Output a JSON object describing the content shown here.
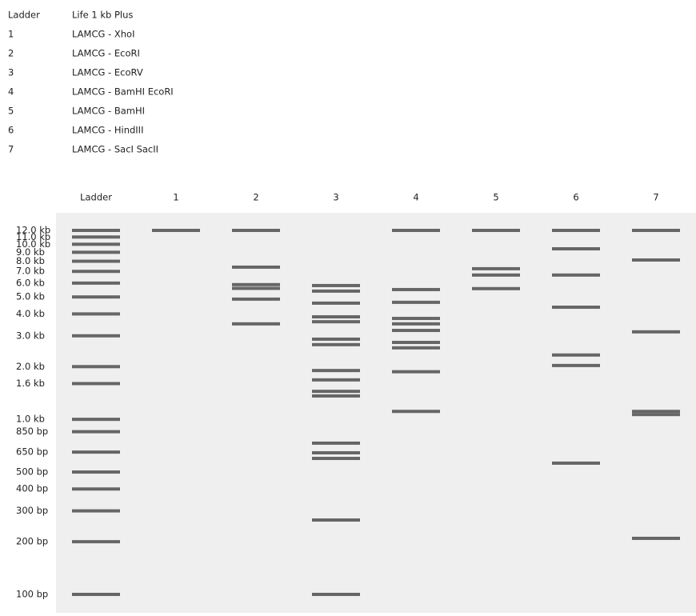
{
  "legend": [
    [
      "Ladder",
      "Life 1 kb Plus"
    ],
    [
      "1",
      "LAMCG - XhoI"
    ],
    [
      "2",
      "LAMCG - EcoRI"
    ],
    [
      "3",
      "LAMCG - EcoRV"
    ],
    [
      "4",
      "LAMCG - BamHI EcoRI"
    ],
    [
      "5",
      "LAMCG - BamHI"
    ],
    [
      "6",
      "LAMCG - HindIII"
    ],
    [
      "7",
      "LAMCG - SacI SacII"
    ]
  ],
  "gel": {
    "scale": "log",
    "ylim": [
      100,
      12000
    ],
    "ladder": [
      {
        "value": 12000,
        "label": "12.0 kb"
      },
      {
        "value": 11000,
        "label": "11.0 kb"
      },
      {
        "value": 10000,
        "label": "10.0 kb"
      },
      {
        "value": 9000,
        "label": "9.0 kb"
      },
      {
        "value": 8000,
        "label": "8.0 kb"
      },
      {
        "value": 7000,
        "label": "7.0 kb"
      },
      {
        "value": 6000,
        "label": "6.0 kb"
      },
      {
        "value": 5000,
        "label": "5.0 kb"
      },
      {
        "value": 4000,
        "label": "4.0 kb"
      },
      {
        "value": 3000,
        "label": "3.0 kb"
      },
      {
        "value": 2000,
        "label": "2.0 kb"
      },
      {
        "value": 1600,
        "label": "1.6 kb"
      },
      {
        "value": 1000,
        "label": "1.0 kb"
      },
      {
        "value": 850,
        "label": "850 bp"
      },
      {
        "value": 650,
        "label": "650 bp"
      },
      {
        "value": 500,
        "label": "500 bp"
      },
      {
        "value": 400,
        "label": "400 bp"
      },
      {
        "value": 300,
        "label": "300 bp"
      },
      {
        "value": 200,
        "label": "200 bp"
      },
      {
        "value": 100,
        "label": "100 bp"
      }
    ],
    "lanes": [
      {
        "name": "Ladder"
      },
      {
        "name": "1",
        "bands": [
          12000
        ]
      },
      {
        "name": "2",
        "bands": [
          12000,
          7400,
          5880,
          5600,
          4860,
          3510
        ]
      },
      {
        "name": "3",
        "bands": [
          5810,
          5400,
          4610,
          3850,
          3610,
          2870,
          2670,
          1900,
          1680,
          1445,
          1360,
          731,
          644,
          598,
          266,
          100
        ]
      },
      {
        "name": "4",
        "bands": [
          12000,
          5510,
          4660,
          3770,
          3510,
          3220,
          2750,
          2560,
          1870,
          1110
        ]
      },
      {
        "name": "5",
        "bands": [
          12000,
          7250,
          6670,
          5580
        ]
      },
      {
        "name": "6",
        "bands": [
          12000,
          9420,
          6670,
          4370,
          2330,
          2030,
          562
        ]
      },
      {
        "name": "7",
        "bands": [
          12000,
          8130,
          3160,
          1110,
          1065,
          209
        ]
      }
    ]
  }
}
